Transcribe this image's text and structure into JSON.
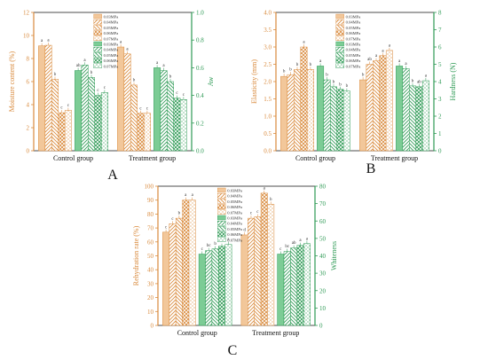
{
  "colors": {
    "orange": "#f2c79a",
    "orange_dark": "#d98a3c",
    "green": "#7ccc95",
    "green_dark": "#2e9a55",
    "axis": "#222222"
  },
  "legend_labels": [
    "0.03MPa",
    "0.04MPa",
    "0.05MPa",
    "0.06MPa",
    "0.07MPa",
    "0.03MPa",
    "0.04MPa",
    "0.05MPa",
    "0.06MPa",
    "0.07MPa"
  ],
  "chart_data": [
    {
      "panel_label": "A",
      "type": "bar",
      "categories": [
        "Control group",
        "Treatment group"
      ],
      "ylabel": "Moisture content (%)",
      "y2label": "Aw",
      "ylim": [
        0,
        12
      ],
      "y2lim": [
        0,
        1.0
      ],
      "yticks": [
        "0",
        "2",
        "4",
        "6",
        "8",
        "10",
        "12"
      ],
      "y2ticks": [
        "0.0",
        "0.2",
        "0.4",
        "0.6",
        "0.8",
        "1.0"
      ],
      "series_left": [
        [
          9.1,
          9.15,
          6.2,
          3.3,
          3.5
        ],
        [
          9.0,
          8.4,
          5.7,
          3.25,
          3.25
        ]
      ],
      "letters_left": [
        [
          "a",
          "a",
          "b",
          "c",
          "c"
        ],
        [
          "a",
          "a",
          "b",
          "c",
          "c"
        ]
      ],
      "series_right": [
        [
          0.58,
          0.62,
          0.53,
          0.4,
          0.42
        ],
        [
          0.6,
          0.58,
          0.5,
          0.38,
          0.37
        ]
      ],
      "letters_right": [
        [
          "ab",
          "a",
          "b",
          "c",
          "c"
        ],
        [
          "a",
          "a",
          "b",
          "c",
          "c"
        ]
      ]
    },
    {
      "panel_label": "B",
      "type": "bar",
      "categories": [
        "Control group",
        "Treatment group"
      ],
      "ylabel": "Elasticity (mm)",
      "y2label": "Hardness (N)",
      "ylim": [
        0,
        4.0
      ],
      "y2lim": [
        0,
        8
      ],
      "yticks": [
        "0.0",
        "0.5",
        "1.0",
        "1.5",
        "2.0",
        "2.5",
        "3.0",
        "3.5",
        "4.0"
      ],
      "y2ticks": [
        "0",
        "1",
        "2",
        "3",
        "4",
        "5",
        "6",
        "7",
        "8"
      ],
      "series_left": [
        [
          2.15,
          2.2,
          2.35,
          3.0,
          2.35
        ],
        [
          2.05,
          2.5,
          2.6,
          2.75,
          2.9
        ]
      ],
      "letters_left": [
        [
          "b",
          "b",
          "b",
          "a",
          "b"
        ],
        [
          "b",
          "ab",
          "a",
          "a",
          "a"
        ]
      ],
      "series_right": [
        [
          4.9,
          4.1,
          3.7,
          3.55,
          3.45
        ],
        [
          4.9,
          4.75,
          3.75,
          3.7,
          4.05
        ]
      ],
      "letters_right": [
        [
          "a",
          "b",
          "b",
          "b",
          "b"
        ],
        [
          "a",
          "a",
          "b",
          "ab",
          "a"
        ]
      ]
    },
    {
      "panel_label": "C",
      "type": "bar",
      "categories": [
        "Control group",
        "Treatment group"
      ],
      "ylabel": "Rehydration rate (%)",
      "y2label": "Whiteness",
      "ylim": [
        0,
        100
      ],
      "y2lim": [
        0,
        80
      ],
      "yticks": [
        "0",
        "10",
        "20",
        "30",
        "40",
        "50",
        "60",
        "70",
        "80",
        "90",
        "100"
      ],
      "y2ticks": [
        "0",
        "10",
        "20",
        "30",
        "40",
        "50",
        "60",
        "70",
        "80"
      ],
      "series_left": [
        [
          67,
          73,
          77,
          90,
          90
        ],
        [
          65,
          77,
          78,
          95,
          87
        ]
      ],
      "letters_left": [
        [
          "c",
          "c",
          "b",
          "a",
          "a"
        ],
        [
          "d",
          "c",
          "c",
          "a",
          "b"
        ]
      ],
      "series_right": [
        [
          41,
          43,
          44,
          45.5,
          46.5
        ],
        [
          41,
          42.5,
          44.5,
          46,
          47
        ]
      ],
      "letters_right": [
        [
          "c",
          "bc",
          "b",
          "a",
          "a"
        ],
        [
          "c",
          "bc",
          "ab",
          "a",
          "a"
        ]
      ]
    }
  ]
}
